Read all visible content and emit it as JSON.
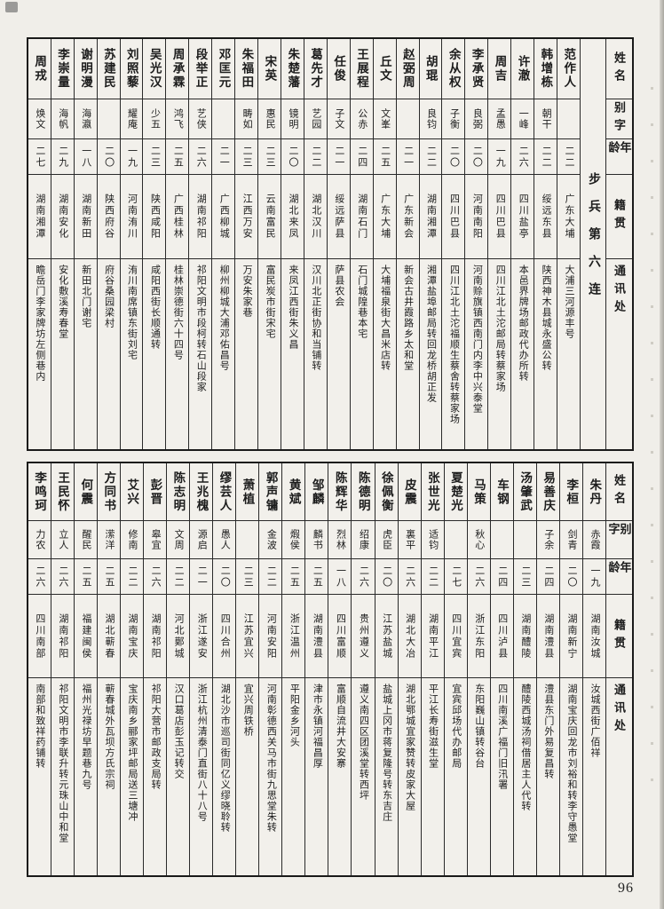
{
  "page": {
    "number": "96"
  },
  "headers": {
    "name": "姓名",
    "courtesy": "别字",
    "age": "年龄",
    "native": "籍贯",
    "address": "通讯处"
  },
  "unit_label": "步兵第六连",
  "tables": [
    {
      "id": "top",
      "people": [
        {
          "name": "范作人",
          "courtesy": "",
          "age": "二二",
          "native": "广东大埔",
          "address": "大浦三河源丰号"
        },
        {
          "name": "韩增栋",
          "courtesy": "朝干",
          "age": "二二",
          "native": "绥远东县",
          "address": "陕西神木县城永盛公转"
        },
        {
          "name": "许澈",
          "courtesy": "一峰",
          "age": "二六",
          "native": "四川盐亭",
          "address": "本邑界牌场邮政代办所转"
        },
        {
          "name": "周吉",
          "courtesy": "孟愚",
          "age": "一九",
          "native": "四川巴县",
          "address": "四川江北土沱邮局转蔡家场"
        },
        {
          "name": "李承贤",
          "courtesy": "良弼",
          "age": "二〇",
          "native": "河南南阳",
          "address": "河南赊旗镇西南门内李中兴泰堂"
        },
        {
          "name": "余从权",
          "courtesy": "子衡",
          "age": "二〇",
          "native": "四川巴县",
          "address": "四川江北土沱福顺生蔡舍转蔡家场"
        },
        {
          "name": "胡琨",
          "courtesy": "良钧",
          "age": "二二",
          "native": "湖南湘潭",
          "address": "湘潭盐埠邮局转回龙桥胡正发"
        },
        {
          "name": "赵弼周",
          "courtesy": "",
          "age": "二一",
          "native": "广东新会",
          "address": "新会古井霞路乡太和堂"
        },
        {
          "name": "丘文",
          "courtesy": "文峯",
          "age": "二五",
          "native": "广东大埔",
          "address": "大埔福泉街大昌米店转"
        },
        {
          "name": "王展程",
          "courtesy": "公赤",
          "age": "二四",
          "native": "湖南石门",
          "address": "石门城隍巷本宅"
        },
        {
          "name": "任俊",
          "courtesy": "子文",
          "age": "二一",
          "native": "绥远萨县",
          "address": "萨县农会"
        },
        {
          "name": "葛先才",
          "courtesy": "艺园",
          "age": "二二",
          "native": "湖北汉川",
          "address": "汉川北正街协和当铺转"
        },
        {
          "name": "朱楚藩",
          "courtesy": "镜明",
          "age": "二〇",
          "native": "湖北来凤",
          "address": "来凤江西街朱义昌"
        },
        {
          "name": "宋英",
          "courtesy": "惠民",
          "age": "二三",
          "native": "云南富民",
          "address": "富民炭市街宋宅"
        },
        {
          "name": "朱福田",
          "courtesy": "畴如",
          "age": "二三",
          "native": "江西万安",
          "address": "万安朱家巷"
        },
        {
          "name": "邓匡元",
          "courtesy": "",
          "age": "二一",
          "native": "广西柳城",
          "address": "柳州柳城大浦邓佑昌号"
        },
        {
          "name": "段举正",
          "courtesy": "艺侠",
          "age": "二六",
          "native": "湖南祁阳",
          "address": "祁阳文明市段柯转石山段家"
        },
        {
          "name": "周承霖",
          "courtesy": "鸿飞",
          "age": "二五",
          "native": "广西桂林",
          "address": "桂林崇德街六十四号"
        },
        {
          "name": "吴光汉",
          "courtesy": "少五",
          "age": "二三",
          "native": "陕西咸阳",
          "address": "咸阳西街长顺通转"
        },
        {
          "name": "刘照藜",
          "courtesy": "耀庵",
          "age": "一九",
          "native": "河南洧川",
          "address": "洧川南席镇东街刘宅"
        },
        {
          "name": "苏建民",
          "courtesy": "",
          "age": "二〇",
          "native": "陕西府谷",
          "address": "府谷桑园梁村"
        },
        {
          "name": "谢明漫",
          "courtesy": "海瀛",
          "age": "一八",
          "native": "湖南新田",
          "address": "新田北门谢宅"
        },
        {
          "name": "李崇量",
          "courtesy": "海帆",
          "age": "二九",
          "native": "湖南安化",
          "address": "安化敷溪寿春堂"
        },
        {
          "name": "周戎",
          "courtesy": "焕文",
          "age": "二七",
          "native": "湖南湘潭",
          "address": "瞻岳门李家牌坊左侧巷内"
        }
      ]
    },
    {
      "id": "bottom",
      "people": [
        {
          "name": "朱丹",
          "courtesy": "赤霞",
          "age": "一九",
          "native": "湖南汝城",
          "address": "汝城西街广佰祥"
        },
        {
          "name": "李桓",
          "courtesy": "剑青",
          "age": "二〇",
          "native": "湖南新宁",
          "address": "湖南宝庆回龙市刘裕和转李守愚堂"
        },
        {
          "name": "易善庆",
          "courtesy": "子余",
          "age": "二四",
          "native": "湖南澧县",
          "address": "澧县东门外易复昌转"
        },
        {
          "name": "汤肇武",
          "courtesy": "",
          "age": "二三",
          "native": "湖南醴陵",
          "address": "醴陵西城汤祠借居主人代转"
        },
        {
          "name": "车钢",
          "courtesy": "",
          "age": "二四",
          "native": "四川泸县",
          "address": "四川南溪广福门旧汛署"
        },
        {
          "name": "马策",
          "courtesy": "秋心",
          "age": "二六",
          "native": "浙江东阳",
          "address": "东阳巍山镇转谷台"
        },
        {
          "name": "夏楚光",
          "courtesy": "",
          "age": "二七",
          "native": "四川宜宾",
          "address": "宜宾邱场代办邮局"
        },
        {
          "name": "张世光",
          "courtesy": "适钧",
          "age": "二二",
          "native": "湖南平江",
          "address": "平江长寿街滋生堂"
        },
        {
          "name": "皮震",
          "courtesy": "裏平",
          "age": "二六",
          "native": "湖北大冶",
          "address": "湖北鄂城宜家赞转皮家大屋"
        },
        {
          "name": "徐佩衡",
          "courtesy": "虎臣",
          "age": "二〇",
          "native": "江苏盐城",
          "address": "盐城上冈市蒋复隆号转东吉庄"
        },
        {
          "name": "陈德明",
          "courtesy": "绍康",
          "age": "二六",
          "native": "贵州遵义",
          "address": "遵义南四区团溪堂转西坪"
        },
        {
          "name": "陈辉华",
          "courtesy": "烈林",
          "age": "一八",
          "native": "四川富顺",
          "address": "富顺自流井大安寨"
        },
        {
          "name": "邹麟",
          "courtesy": "麟书",
          "age": "二五",
          "native": "湖南澧县",
          "address": "津市永镇河福昌厚"
        },
        {
          "name": "黄斌",
          "courtesy": "煆侯",
          "age": "二五",
          "native": "浙江温州",
          "address": "平阳金乡河头"
        },
        {
          "name": "郭声镛",
          "courtesy": "金波",
          "age": "二二",
          "native": "河南安阳",
          "address": "河南彰德西关马市街九思堂朱转"
        },
        {
          "name": "萧植",
          "courtesy": "",
          "age": "二三",
          "native": "江苏宜兴",
          "address": "宜兴周铁桥"
        },
        {
          "name": "缪芸人",
          "courtesy": "愚人",
          "age": "二〇",
          "native": "四川合州",
          "address": "湖北沙市巡司街同亿义缪晓聆转"
        },
        {
          "name": "王兆槐",
          "courtesy": "源启",
          "age": "二一",
          "native": "浙江遂安",
          "address": "浙江杭州清泰门直街八十八号"
        },
        {
          "name": "陈志明",
          "courtesy": "文周",
          "age": "二二",
          "native": "河北鄚城",
          "address": "汉口葛店彭玉记转交"
        },
        {
          "name": "彭晋",
          "courtesy": "皋宜",
          "age": "二六",
          "native": "湖南祁阳",
          "address": "祁阳大营市邮政支局转"
        },
        {
          "name": "艾兴",
          "courtesy": "修南",
          "age": "二二",
          "native": "湖南宝庆",
          "address": "宝庆南乡郦家坪邮局送三塘冲"
        },
        {
          "name": "方同书",
          "courtesy": "潆洋",
          "age": "二五",
          "native": "湖北蕲春",
          "address": "蕲春城外瓦坝方氏宗祠"
        },
        {
          "name": "何震",
          "courtesy": "醒民",
          "age": "二五",
          "native": "福建闽侯",
          "address": "福州光禄坊早题巷九号"
        },
        {
          "name": "王民怀",
          "courtesy": "立人",
          "age": "二六",
          "native": "湖南祁阳",
          "address": "祁阳文明市李联升转元珠山中和堂"
        },
        {
          "name": "李鸣珂",
          "courtesy": "力农",
          "age": "二六",
          "native": "四川南部",
          "address": "南部和致祥药铺转"
        }
      ]
    }
  ]
}
